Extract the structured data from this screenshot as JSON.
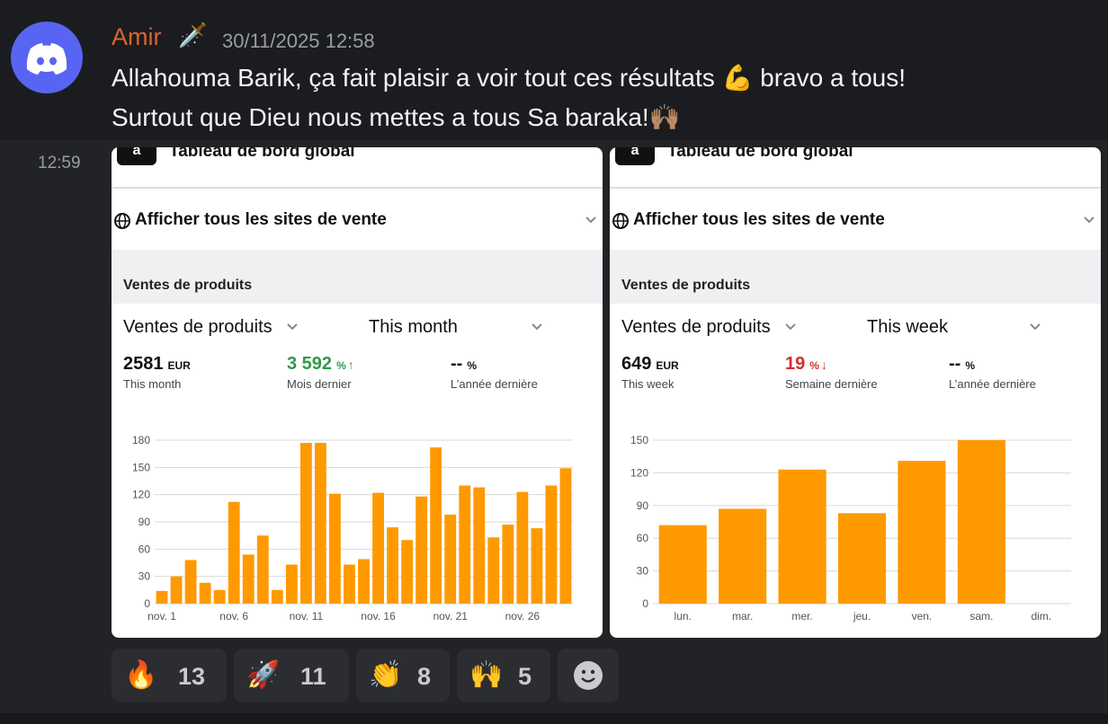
{
  "message": {
    "author": "Amir",
    "author_badge": "🗡️",
    "timestamp": "30/11/2025 12:58",
    "lines": [
      "Allahouma Barik, ça fait plaisir a voir tout ces résultats 💪 bravo a tous!",
      "Surtout que Dieu nous mettes a tous Sa baraka!🙌🏽"
    ],
    "followup_time": "12:59"
  },
  "attachments": [
    {
      "header_title": "Tableau de bord global",
      "logo": "a",
      "marketplace": "Afficher tous les sites de vente",
      "section": "Ventes de produits",
      "metric": "Ventes de produits",
      "period": "This month",
      "stats": [
        {
          "value": 2581,
          "unit": "EUR",
          "label": "This month",
          "color": "#111111"
        },
        {
          "value": "3 592",
          "unit": "%",
          "trend": "↑",
          "label": "Mois dernier",
          "color": "#2e9b4a"
        },
        {
          "value": "--",
          "unit": "%",
          "label": "L’année dernière",
          "color": "#111111"
        }
      ],
      "chart": {
        "type": "bar",
        "color": "#ff9900",
        "grid": true,
        "categories": [
          "nov. 1",
          null,
          null,
          null,
          null,
          "nov. 6",
          null,
          null,
          null,
          null,
          "nov. 11",
          null,
          null,
          null,
          null,
          "nov. 16",
          null,
          null,
          null,
          null,
          "nov. 21",
          null,
          null,
          null,
          null,
          "nov. 26",
          null,
          null,
          null
        ],
        "values": [
          14,
          30,
          48,
          23,
          15,
          112,
          54,
          75,
          15,
          43,
          177,
          177,
          121,
          43,
          49,
          122,
          84,
          70,
          118,
          172,
          98,
          130,
          128,
          73,
          87,
          123,
          83,
          130,
          149
        ],
        "ylim": [
          0,
          180
        ],
        "yticks": [
          0,
          30,
          60,
          90,
          120,
          150,
          180
        ]
      }
    },
    {
      "header_title": "Tableau de bord global",
      "logo": "a",
      "marketplace": "Afficher tous les sites de vente",
      "section": "Ventes de produits",
      "metric": "Ventes de produits",
      "period": "This week",
      "stats": [
        {
          "value": 649,
          "unit": "EUR",
          "label": "This week",
          "color": "#111111"
        },
        {
          "value": 19,
          "unit": "%",
          "trend": "↓",
          "label": "Semaine dernière",
          "color": "#d32f2f"
        },
        {
          "value": "--",
          "unit": "%",
          "label": "L’année dernière",
          "color": "#111111"
        }
      ],
      "chart": {
        "type": "bar",
        "color": "#ff9900",
        "grid": true,
        "categories": [
          "lun.",
          "mar.",
          "mer.",
          "jeu.",
          "ven.",
          "sam.",
          "dim."
        ],
        "values": [
          72,
          87,
          123,
          83,
          131,
          150,
          null
        ],
        "ylim": [
          0,
          150
        ],
        "yticks": [
          0,
          30,
          60,
          90,
          120,
          150
        ]
      }
    }
  ],
  "reactions": [
    {
      "emoji": "🔥",
      "count": 13
    },
    {
      "emoji": "🚀",
      "count": 11
    },
    {
      "emoji": "👏",
      "count": 8
    },
    {
      "emoji": "🙌",
      "count": 5
    }
  ]
}
